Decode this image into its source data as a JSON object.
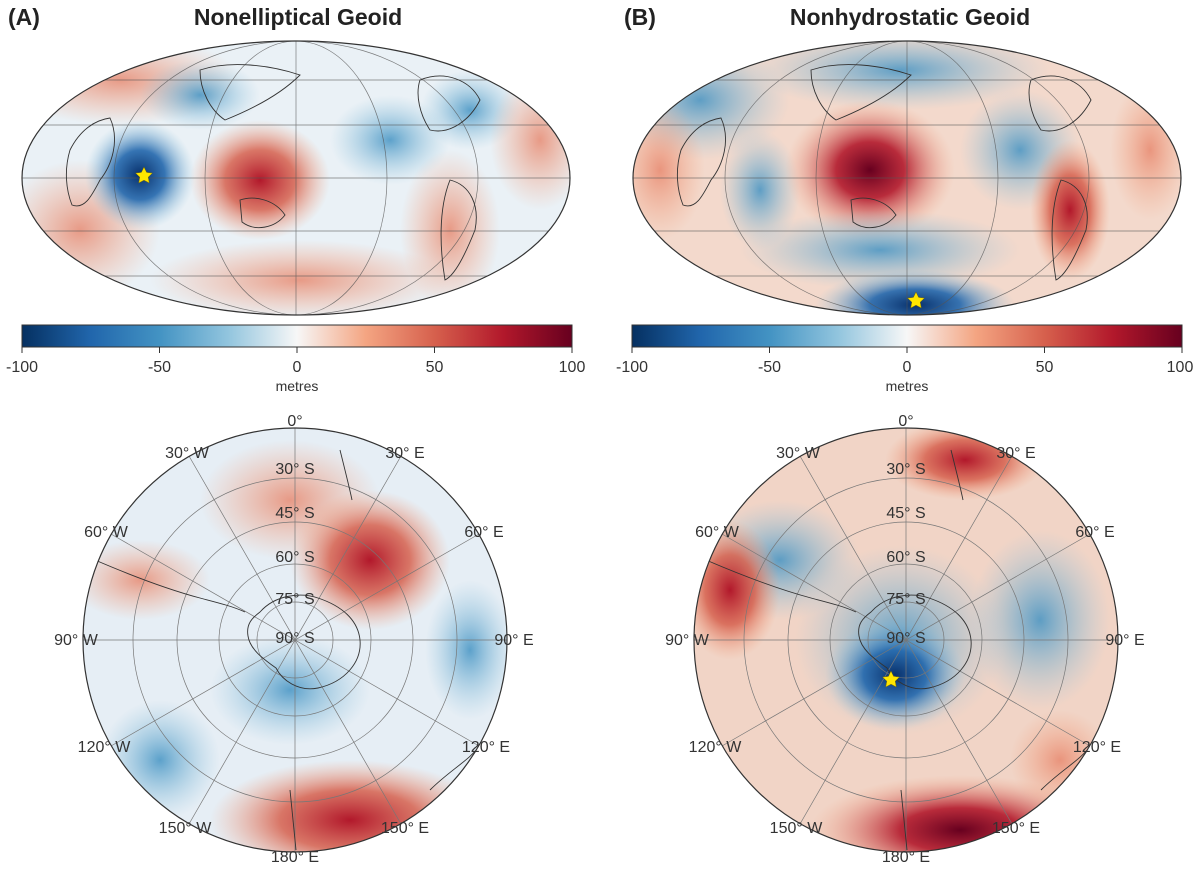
{
  "panels": [
    {
      "letter": "(A)",
      "title": "Nonelliptical Geoid"
    },
    {
      "letter": "(B)",
      "title": "Nonhydrostatic Geoid"
    }
  ],
  "colorbar": {
    "ticks": [
      "-100",
      "-50",
      "0",
      "50",
      "100"
    ],
    "tick_values": [
      -100,
      -50,
      0,
      50,
      100
    ],
    "range": [
      -100,
      100
    ],
    "unit": "metres",
    "colors": [
      "#053061",
      "#2166ac",
      "#4393c3",
      "#92c5de",
      "#f7f7f7",
      "#f4a582",
      "#d6604d",
      "#b2182b",
      "#67001f"
    ]
  },
  "polar_labels": {
    "meridians": [
      "0°",
      "30° E",
      "60° E",
      "90° E",
      "120° E",
      "150° E",
      "180° E",
      "150° W",
      "120° W",
      "90° W",
      "60° W",
      "30° W"
    ],
    "parallels": [
      "30° S",
      "45° S",
      "60° S",
      "75° S",
      "90° S"
    ]
  },
  "marker": "yellow-star"
}
